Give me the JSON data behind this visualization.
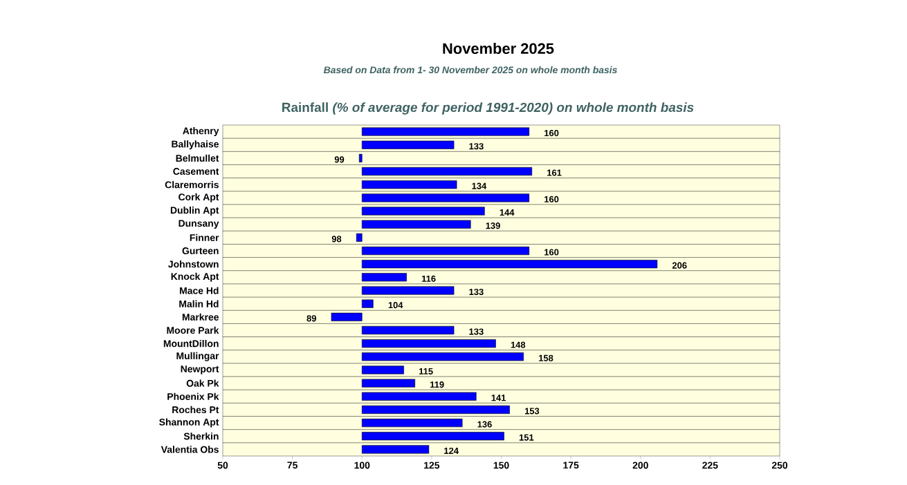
{
  "chart_data": {
    "type": "bar",
    "orientation": "horizontal",
    "title": "November 2025",
    "subtitle": "Based on Data from 1- 30 November 2025 on whole month basis",
    "annotations": [
      "Rainfall *(% of average for period 1991-2020) on whole month basis*"
    ],
    "categories": [
      "Athenry",
      "Ballyhaise",
      "Belmullet",
      "Casement",
      "Claremorris",
      "Cork Apt",
      "Dublin Apt",
      "Dunsany",
      "Finner",
      "Gurteen",
      "Johnstown",
      "Knock Apt",
      "Mace Hd",
      "Malin Hd",
      "Markree",
      "Moore Park",
      "MountDillon",
      "Mullingar",
      "Newport",
      "Oak Pk",
      "Phoenix Pk",
      "Roches Pt",
      "Shannon Apt",
      "Sherkin",
      "Valentia Obs"
    ],
    "base": [
      100,
      100,
      100,
      100,
      100,
      100,
      100,
      100,
      100,
      100,
      100,
      100,
      100,
      100,
      100,
      100,
      100,
      100,
      100,
      100,
      100,
      100,
      100,
      100,
      100
    ],
    "values": [
      60,
      33,
      -1,
      61,
      34,
      60,
      44,
      39,
      -2,
      60,
      106,
      16,
      33,
      4,
      -11,
      33,
      48,
      58,
      15,
      19,
      41,
      53,
      36,
      51,
      24
    ],
    "value_labels": [
      "160",
      "133",
      "99",
      "161",
      "134",
      "160",
      "144",
      "139",
      "98",
      "160",
      "206",
      "116",
      "133",
      "104",
      "89",
      "133",
      "148",
      "158",
      "115",
      "119",
      "141",
      "153",
      "136",
      "151",
      "124"
    ],
    "color": "#0000ff",
    "xlim": [
      50,
      250
    ],
    "xticks": [
      50,
      75,
      100,
      125,
      150,
      175,
      200,
      225,
      250
    ],
    "grid": "y"
  }
}
